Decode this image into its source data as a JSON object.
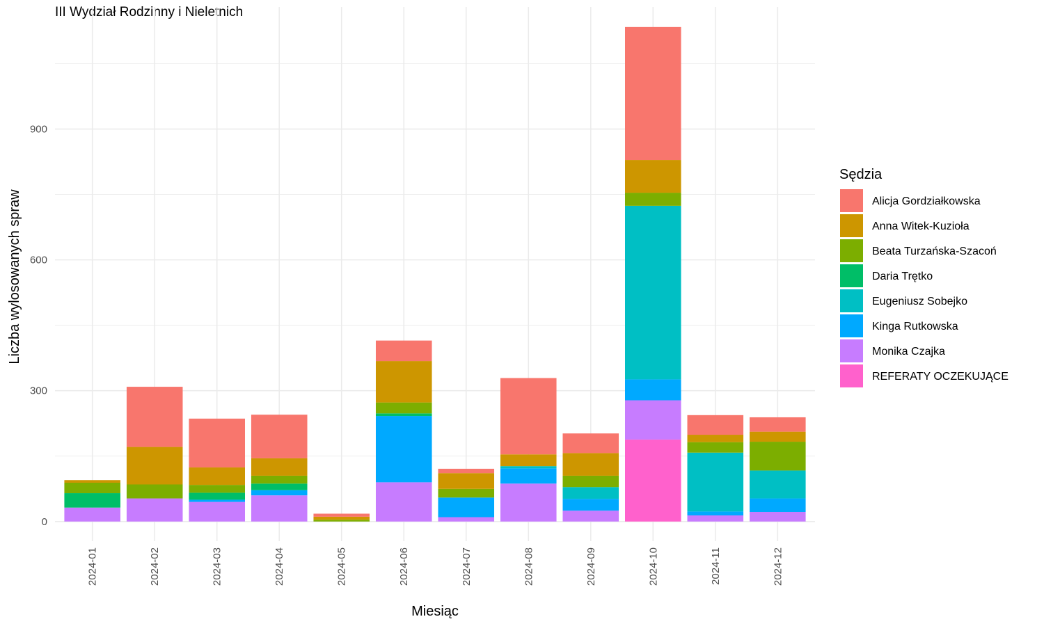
{
  "chart_data": {
    "type": "bar",
    "stacked": true,
    "title": "III Wydział Rodzinny i Nieletnich",
    "xlabel": "Miesiąc",
    "ylabel": "Liczba wylosowanych spraw",
    "ylim": [
      -45,
      1180
    ],
    "yticks": [
      0,
      300,
      600,
      900
    ],
    "grid": true,
    "legend_title": "Sędzia",
    "legend_position": "right",
    "categories": [
      "2024-01",
      "2024-02",
      "2024-03",
      "2024-04",
      "2024-05",
      "2024-06",
      "2024-07",
      "2024-08",
      "2024-09",
      "2024-10",
      "2024-11",
      "2024-12"
    ],
    "series": [
      {
        "name": "REFERATY OCZEKUJĄCE",
        "color": "#FF61CC",
        "values": [
          0,
          0,
          0,
          0,
          0,
          0,
          0,
          0,
          0,
          188,
          0,
          0
        ]
      },
      {
        "name": "Monika Czajka",
        "color": "#C77CFF",
        "values": [
          32,
          53,
          45,
          60,
          0,
          90,
          10,
          87,
          25,
          90,
          14,
          22
        ]
      },
      {
        "name": "Kinga Rutkowska",
        "color": "#00A9FF",
        "values": [
          0,
          0,
          5,
          12,
          0,
          152,
          45,
          35,
          27,
          48,
          9,
          31
        ]
      },
      {
        "name": "Eugeniusz Sobejko",
        "color": "#00BFC4",
        "values": [
          0,
          0,
          0,
          0,
          0,
          0,
          0,
          5,
          27,
          398,
          135,
          64
        ]
      },
      {
        "name": "Daria Trętko",
        "color": "#00BE67",
        "values": [
          33,
          0,
          16,
          15,
          0,
          6,
          0,
          0,
          0,
          0,
          0,
          0
        ]
      },
      {
        "name": "Beata Turzańska-Szacoń",
        "color": "#7CAE00",
        "values": [
          24,
          32,
          18,
          18,
          4,
          25,
          20,
          0,
          26,
          30,
          24,
          66
        ]
      },
      {
        "name": "Anna Witek-Kuzioła",
        "color": "#CD9600",
        "values": [
          6,
          86,
          40,
          40,
          7,
          95,
          36,
          27,
          52,
          75,
          17,
          23
        ]
      },
      {
        "name": "Alicja Gordziałkowska",
        "color": "#F8766D",
        "values": [
          0,
          138,
          112,
          100,
          7,
          47,
          10,
          175,
          45,
          305,
          45,
          33
        ]
      }
    ],
    "legend_order": [
      "Alicja Gordziałkowska",
      "Anna Witek-Kuzioła",
      "Beata Turzańska-Szacoń",
      "Daria Trętko",
      "Eugeniusz Sobejko",
      "Kinga Rutkowska",
      "Monika Czajka",
      "REFERATY OCZEKUJĄCE"
    ]
  }
}
